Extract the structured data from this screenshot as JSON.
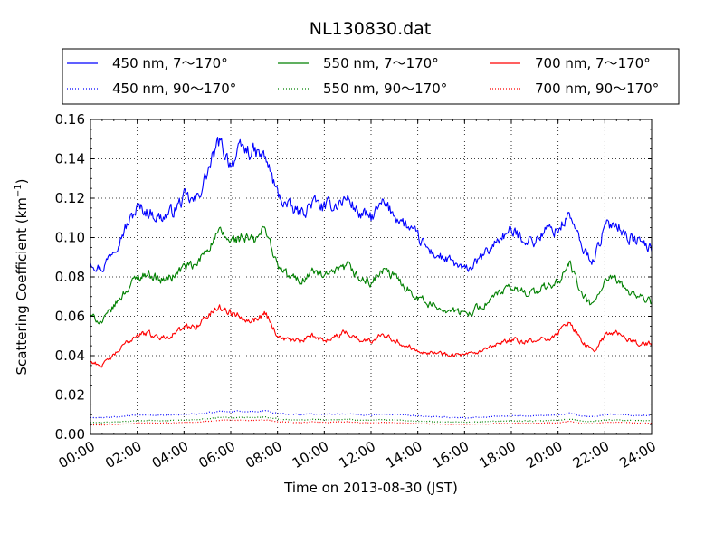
{
  "chart_data": {
    "type": "line",
    "title": "NL130830.dat",
    "xlabel": "Time on 2013-08-30 (JST)",
    "ylabel": "Scattering Coefficient (km",
    "ylabel_sup": "−1",
    "ylabel_tail": ")",
    "xlim_hours": [
      0,
      24
    ],
    "ylim": [
      0,
      0.16
    ],
    "grid": true,
    "legend_placement": "top, above plot, three columns",
    "x_tick_labels": [
      "00:00",
      "02:00",
      "04:00",
      "06:00",
      "08:00",
      "10:00",
      "12:00",
      "14:00",
      "16:00",
      "18:00",
      "20:00",
      "22:00",
      "24:00"
    ],
    "y_ticks": [
      0,
      0.02,
      0.04,
      0.06,
      0.08,
      0.1,
      0.12,
      0.14,
      0.16
    ],
    "y_tick_labels": [
      "0.00",
      "0.02",
      "0.04",
      "0.06",
      "0.08",
      "0.10",
      "0.12",
      "0.14",
      "0.16"
    ],
    "x_hours": [
      0,
      0.5,
      1,
      1.5,
      2,
      2.5,
      3,
      3.5,
      4,
      4.5,
      5,
      5.5,
      6,
      6.5,
      7,
      7.5,
      8,
      8.5,
      9,
      9.5,
      10,
      10.5,
      11,
      11.5,
      12,
      12.5,
      13,
      13.5,
      14,
      14.5,
      15,
      15.5,
      16,
      16.5,
      17,
      17.5,
      18,
      18.5,
      19,
      19.5,
      20,
      20.5,
      21,
      21.5,
      22,
      22.5,
      23,
      23.5,
      24
    ],
    "series": [
      {
        "name": "450 nm, 7～170°",
        "color": "#0000ff",
        "style": "solid",
        "values": [
          0.088,
          0.084,
          0.095,
          0.105,
          0.115,
          0.113,
          0.11,
          0.113,
          0.12,
          0.118,
          0.133,
          0.148,
          0.138,
          0.145,
          0.143,
          0.14,
          0.122,
          0.115,
          0.112,
          0.118,
          0.115,
          0.117,
          0.12,
          0.112,
          0.11,
          0.117,
          0.112,
          0.106,
          0.1,
          0.093,
          0.09,
          0.087,
          0.083,
          0.087,
          0.093,
          0.1,
          0.103,
          0.1,
          0.098,
          0.104,
          0.104,
          0.112,
          0.095,
          0.088,
          0.105,
          0.108,
          0.1,
          0.098,
          0.094
        ]
      },
      {
        "name": "450 nm, 90～170°",
        "color": "#0000ff",
        "style": "dotted",
        "values": [
          0.0085,
          0.0085,
          0.0088,
          0.0092,
          0.0098,
          0.0098,
          0.0096,
          0.0098,
          0.0102,
          0.0103,
          0.011,
          0.0118,
          0.0115,
          0.0118,
          0.0118,
          0.0118,
          0.0108,
          0.0103,
          0.01,
          0.0104,
          0.0102,
          0.0103,
          0.0105,
          0.01,
          0.0098,
          0.0103,
          0.01,
          0.0096,
          0.0093,
          0.009,
          0.0088,
          0.0086,
          0.0084,
          0.0086,
          0.0088,
          0.0092,
          0.0095,
          0.0094,
          0.0093,
          0.0096,
          0.0098,
          0.0108,
          0.0094,
          0.009,
          0.01,
          0.0102,
          0.0098,
          0.0097,
          0.0096
        ]
      },
      {
        "name": "550 nm, 7～170°",
        "color": "#008000",
        "style": "solid",
        "values": [
          0.06,
          0.057,
          0.065,
          0.073,
          0.08,
          0.082,
          0.078,
          0.08,
          0.085,
          0.085,
          0.095,
          0.102,
          0.098,
          0.1,
          0.098,
          0.105,
          0.085,
          0.08,
          0.078,
          0.083,
          0.08,
          0.082,
          0.085,
          0.079,
          0.077,
          0.083,
          0.08,
          0.075,
          0.07,
          0.066,
          0.064,
          0.063,
          0.061,
          0.064,
          0.067,
          0.072,
          0.074,
          0.073,
          0.072,
          0.075,
          0.077,
          0.087,
          0.071,
          0.065,
          0.078,
          0.078,
          0.073,
          0.07,
          0.067
        ]
      },
      {
        "name": "550 nm, 90～170°",
        "color": "#008000",
        "style": "dotted",
        "values": [
          0.006,
          0.006,
          0.0063,
          0.0066,
          0.007,
          0.0071,
          0.0069,
          0.0071,
          0.0074,
          0.0075,
          0.008,
          0.0086,
          0.0084,
          0.0086,
          0.0085,
          0.0088,
          0.0078,
          0.0075,
          0.0073,
          0.0076,
          0.0074,
          0.0075,
          0.0077,
          0.0073,
          0.0072,
          0.0075,
          0.0073,
          0.007,
          0.0067,
          0.0065,
          0.0064,
          0.0063,
          0.0062,
          0.0063,
          0.0065,
          0.0067,
          0.0069,
          0.0068,
          0.0068,
          0.007,
          0.0071,
          0.0079,
          0.0068,
          0.0065,
          0.0073,
          0.0074,
          0.0071,
          0.007,
          0.0068
        ]
      },
      {
        "name": "700 nm, 7～170°",
        "color": "#ff0000",
        "style": "solid",
        "values": [
          0.037,
          0.035,
          0.04,
          0.046,
          0.051,
          0.051,
          0.049,
          0.051,
          0.054,
          0.055,
          0.06,
          0.065,
          0.062,
          0.06,
          0.058,
          0.062,
          0.05,
          0.048,
          0.047,
          0.05,
          0.048,
          0.05,
          0.052,
          0.048,
          0.047,
          0.052,
          0.048,
          0.045,
          0.043,
          0.042,
          0.041,
          0.041,
          0.04,
          0.041,
          0.043,
          0.046,
          0.048,
          0.047,
          0.047,
          0.049,
          0.051,
          0.058,
          0.047,
          0.042,
          0.05,
          0.052,
          0.048,
          0.046,
          0.046
        ]
      },
      {
        "name": "700 nm, 90～170°",
        "color": "#ff0000",
        "style": "dotted",
        "values": [
          0.0048,
          0.0048,
          0.005,
          0.0053,
          0.0057,
          0.0058,
          0.0057,
          0.0058,
          0.0061,
          0.0062,
          0.0066,
          0.0072,
          0.007,
          0.0072,
          0.0071,
          0.0074,
          0.0065,
          0.0062,
          0.006,
          0.0063,
          0.0061,
          0.0062,
          0.0064,
          0.006,
          0.0059,
          0.0062,
          0.006,
          0.0058,
          0.0055,
          0.0053,
          0.0052,
          0.0051,
          0.005,
          0.0051,
          0.0053,
          0.0055,
          0.0057,
          0.0056,
          0.0056,
          0.0058,
          0.0059,
          0.0066,
          0.0056,
          0.0053,
          0.0061,
          0.0062,
          0.0059,
          0.0058,
          0.0057
        ]
      }
    ]
  }
}
